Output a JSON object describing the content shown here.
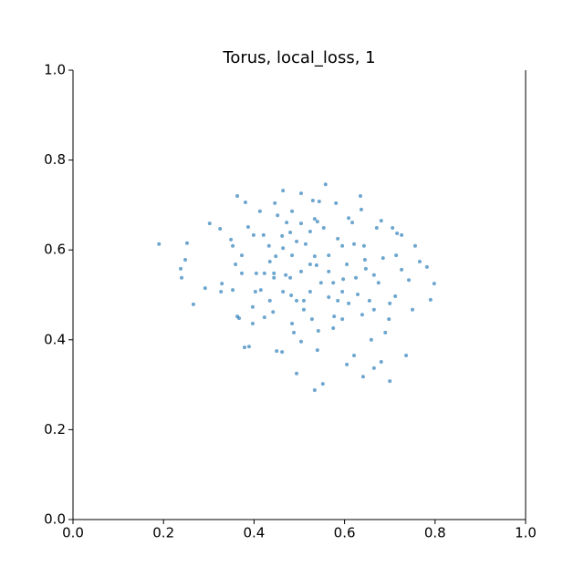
{
  "chart_data": {
    "type": "scatter",
    "title": "Torus, local_loss, 1",
    "color": "#1f77b4",
    "xlim": [
      0,
      1
    ],
    "ylim": [
      0,
      1
    ],
    "xticks": [
      {
        "value": 0,
        "label": "0.0"
      },
      {
        "value": 0.2,
        "label": "0.2"
      },
      {
        "value": 0.4,
        "label": "0.4"
      },
      {
        "value": 0.6,
        "label": "0.6"
      },
      {
        "value": 0.8,
        "label": "0.8"
      },
      {
        "value": 1,
        "label": "1.0"
      }
    ],
    "yticks": [
      {
        "value": 0,
        "label": "0.0"
      },
      {
        "value": 0.2,
        "label": "0.2"
      },
      {
        "value": 0.4,
        "label": "0.4"
      },
      {
        "value": 0.6,
        "label": "0.6"
      },
      {
        "value": 0.8,
        "label": "0.8"
      },
      {
        "value": 1,
        "label": "1.0"
      }
    ],
    "x": [
      0.19,
      0.252,
      0.238,
      0.248,
      0.24,
      0.266,
      0.292,
      0.302,
      0.325,
      0.327,
      0.329,
      0.349,
      0.353,
      0.363,
      0.381,
      0.363,
      0.367,
      0.373,
      0.379,
      0.389,
      0.397,
      0.397,
      0.387,
      0.399,
      0.413,
      0.421,
      0.415,
      0.423,
      0.435,
      0.442,
      0.435,
      0.448,
      0.446,
      0.452,
      0.464,
      0.462,
      0.472,
      0.48,
      0.47,
      0.48,
      0.482,
      0.462,
      0.45,
      0.484,
      0.494,
      0.494,
      0.51,
      0.504,
      0.53,
      0.544,
      0.558,
      0.54,
      0.534,
      0.538,
      0.524,
      0.534,
      0.552,
      0.542,
      0.54,
      0.565,
      0.577,
      0.581,
      0.585,
      0.595,
      0.597,
      0.609,
      0.617,
      0.605,
      0.621,
      0.635,
      0.637,
      0.621,
      0.643,
      0.647,
      0.629,
      0.639,
      0.641,
      0.659,
      0.665,
      0.681,
      0.671,
      0.681,
      0.665,
      0.675,
      0.685,
      0.7,
      0.7,
      0.706,
      0.716,
      0.726,
      0.714,
      0.726,
      0.736,
      0.742,
      0.75,
      0.766,
      0.782,
      0.79,
      0.798,
      0.756,
      0.712,
      0.698,
      0.69,
      0.655,
      0.585,
      0.565,
      0.548,
      0.504,
      0.484,
      0.444,
      0.423,
      0.405,
      0.373,
      0.359,
      0.353,
      0.403,
      0.51,
      0.514,
      0.554,
      0.565,
      0.595,
      0.575,
      0.625,
      0.605,
      0.575,
      0.524,
      0.464,
      0.444,
      0.433,
      0.464,
      0.494,
      0.524,
      0.534,
      0.504,
      0.484,
      0.595,
      0.609,
      0.528,
      0.488,
      0.504,
      0.665,
      0.645
    ],
    "y": [
      0.613,
      0.615,
      0.558,
      0.578,
      0.538,
      0.479,
      0.515,
      0.659,
      0.647,
      0.507,
      0.525,
      0.623,
      0.609,
      0.72,
      0.706,
      0.452,
      0.448,
      0.548,
      0.383,
      0.385,
      0.473,
      0.436,
      0.651,
      0.633,
      0.686,
      0.633,
      0.511,
      0.45,
      0.487,
      0.462,
      0.574,
      0.586,
      0.704,
      0.677,
      0.732,
      0.631,
      0.661,
      0.639,
      0.544,
      0.538,
      0.499,
      0.373,
      0.375,
      0.436,
      0.325,
      0.487,
      0.487,
      0.726,
      0.71,
      0.708,
      0.746,
      0.663,
      0.586,
      0.566,
      0.568,
      0.288,
      0.302,
      0.42,
      0.377,
      0.495,
      0.452,
      0.704,
      0.625,
      0.609,
      0.535,
      0.671,
      0.661,
      0.345,
      0.365,
      0.72,
      0.69,
      0.613,
      0.609,
      0.558,
      0.501,
      0.456,
      0.318,
      0.4,
      0.337,
      0.351,
      0.649,
      0.665,
      0.544,
      0.527,
      0.582,
      0.481,
      0.308,
      0.649,
      0.637,
      0.633,
      0.588,
      0.556,
      0.365,
      0.533,
      0.467,
      0.574,
      0.562,
      0.489,
      0.525,
      0.609,
      0.497,
      0.446,
      0.416,
      0.487,
      0.487,
      0.552,
      0.527,
      0.552,
      0.588,
      0.548,
      0.548,
      0.548,
      0.588,
      0.568,
      0.511,
      0.507,
      0.467,
      0.613,
      0.649,
      0.588,
      0.446,
      0.426,
      0.538,
      0.568,
      0.527,
      0.507,
      0.507,
      0.538,
      0.609,
      0.604,
      0.619,
      0.641,
      0.669,
      0.659,
      0.686,
      0.507,
      0.481,
      0.446,
      0.416,
      0.396,
      0.467,
      0.578
    ]
  }
}
